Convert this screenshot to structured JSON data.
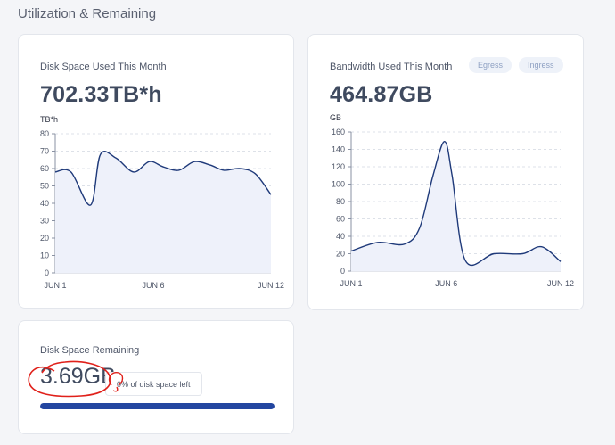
{
  "page": {
    "title": "Utilization & Remaining"
  },
  "disk_used": {
    "title": "Disk Space Used This Month",
    "value": "702.33TB*h",
    "unit": "TB*h"
  },
  "bandwidth": {
    "title": "Bandwidth Used This Month",
    "value": "464.87GB",
    "unit": "GB",
    "filters": [
      "Egress",
      "Ingress"
    ]
  },
  "remaining": {
    "title": "Disk Space Remaining",
    "value": "3.69GB",
    "tooltip": "0% of disk space left",
    "progress_used_fraction": 1.0
  },
  "colors": {
    "line": "#1f3a7a",
    "fill": "#eef1fa",
    "grid": "#dde1e8",
    "progress": "#2346a0",
    "annotation": "#e0201a"
  },
  "chart_data": [
    {
      "type": "area",
      "title": "",
      "ylabel": "TB*h",
      "ylim": [
        0,
        80
      ],
      "yticks": [
        0,
        10,
        20,
        30,
        40,
        50,
        60,
        70,
        80
      ],
      "xlim": [
        1,
        12
      ],
      "xticks": [
        {
          "x": 1,
          "label": "JUN 1"
        },
        {
          "x": 6,
          "label": "JUN 6"
        },
        {
          "x": 12,
          "label": "JUN 12"
        }
      ],
      "grid": true,
      "series": [
        {
          "x": [
            1,
            1.8,
            2.8,
            3.3,
            4.1,
            5.0,
            5.8,
            6.5,
            7.3,
            8.1,
            8.9,
            9.6,
            10.4,
            11.2,
            12
          ],
          "values": [
            58,
            58,
            39,
            68,
            66,
            58,
            64,
            61,
            59,
            64,
            62,
            59,
            60,
            57,
            45
          ]
        }
      ]
    },
    {
      "type": "area",
      "title": "",
      "ylabel": "GB",
      "ylim": [
        0,
        160
      ],
      "yticks": [
        0,
        20,
        40,
        60,
        80,
        100,
        120,
        140,
        160
      ],
      "xlim": [
        1,
        12
      ],
      "xticks": [
        {
          "x": 1,
          "label": "JUN 1"
        },
        {
          "x": 6,
          "label": "JUN 6"
        },
        {
          "x": 12,
          "label": "JUN 12"
        }
      ],
      "grid": true,
      "series": [
        {
          "x": [
            1,
            2.4,
            3.8,
            4.6,
            5.3,
            5.9,
            6.3,
            7.0,
            8.5,
            10.0,
            11.0,
            12
          ],
          "values": [
            23,
            33,
            31,
            50,
            110,
            149,
            110,
            12,
            20,
            20,
            28,
            11
          ]
        }
      ]
    }
  ]
}
